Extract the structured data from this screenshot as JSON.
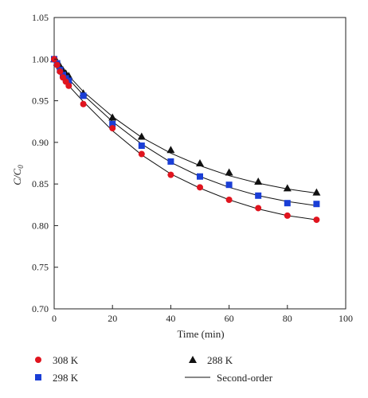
{
  "chart_data": {
    "type": "scatter",
    "title": "",
    "xlabel": "Time (min)",
    "ylabel_main": "C/C",
    "ylabel_sub": "0",
    "xlim": [
      0,
      100
    ],
    "ylim": [
      0.7,
      1.05
    ],
    "xticks": [
      "0",
      "20",
      "40",
      "60",
      "80",
      "100"
    ],
    "yticks": [
      "0.70",
      "0.75",
      "0.80",
      "0.85",
      "0.90",
      "0.95",
      "1.00",
      "1.05"
    ],
    "grid": false,
    "legend_position": "bottom",
    "series": [
      {
        "name": "308 K",
        "marker": "circle",
        "color": "#e0141e",
        "x": [
          0,
          1,
          2,
          3,
          4,
          5,
          10,
          20,
          30,
          40,
          50,
          60,
          70,
          80,
          90
        ],
        "y": [
          1.0,
          0.993,
          0.985,
          0.978,
          0.973,
          0.968,
          0.946,
          0.917,
          0.886,
          0.861,
          0.846,
          0.831,
          0.821,
          0.812,
          0.807
        ],
        "fit": [
          1.0,
          0.9925,
          0.9855,
          0.979,
          0.9735,
          0.968,
          0.949,
          0.914,
          0.885,
          0.862,
          0.845,
          0.831,
          0.82,
          0.812,
          0.807
        ]
      },
      {
        "name": "298 K",
        "marker": "square",
        "color": "#1a3ed6",
        "x": [
          0,
          1,
          2,
          3,
          4,
          5,
          10,
          20,
          30,
          40,
          50,
          60,
          70,
          80,
          90
        ],
        "y": [
          1.0,
          0.995,
          0.987,
          0.981,
          0.977,
          0.974,
          0.956,
          0.922,
          0.896,
          0.877,
          0.859,
          0.849,
          0.836,
          0.827,
          0.826
        ],
        "fit": [
          1.0,
          0.995,
          0.99,
          0.985,
          0.98,
          0.976,
          0.957,
          0.925,
          0.898,
          0.876,
          0.859,
          0.846,
          0.836,
          0.829,
          0.824
        ]
      },
      {
        "name": "288 K",
        "marker": "triangle",
        "color": "#111111",
        "x": [
          0,
          1,
          2,
          3,
          4,
          5,
          10,
          20,
          30,
          40,
          50,
          60,
          70,
          80,
          90
        ],
        "y": [
          1.0,
          0.996,
          0.992,
          0.987,
          0.983,
          0.98,
          0.959,
          0.93,
          0.907,
          0.891,
          0.875,
          0.864,
          0.853,
          0.845,
          0.84
        ],
        "fit": [
          1.0,
          0.996,
          0.992,
          0.988,
          0.984,
          0.98,
          0.961,
          0.931,
          0.906,
          0.887,
          0.872,
          0.86,
          0.851,
          0.844,
          0.839
        ]
      }
    ],
    "fit_line": {
      "name": "Second-order",
      "color": "#111111"
    }
  }
}
